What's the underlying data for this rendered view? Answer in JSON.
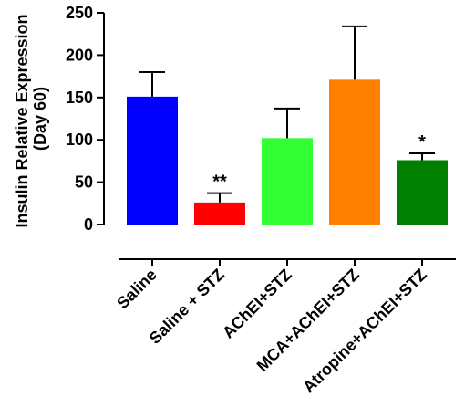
{
  "chart_data": {
    "type": "bar",
    "categories": [
      "Saline",
      "Saline + STZ",
      "AChEI+STZ",
      "MCA+AChEI+STZ",
      "Atropine+AChEI+STZ"
    ],
    "values": [
      151,
      26,
      102,
      171,
      76
    ],
    "errors": [
      29,
      11,
      35,
      63,
      8
    ],
    "colors": [
      "#0000ff",
      "#ff0000",
      "#33ff33",
      "#ff8000",
      "#008000"
    ],
    "significance": [
      "",
      "**",
      "",
      "",
      "*"
    ],
    "ylabel_lines": [
      "Insulin Relative Expression",
      "(Day 60)"
    ],
    "ylim": [
      0,
      250
    ],
    "yticks": [
      0,
      50,
      100,
      150,
      200,
      250
    ],
    "grid": false,
    "legend": false
  }
}
